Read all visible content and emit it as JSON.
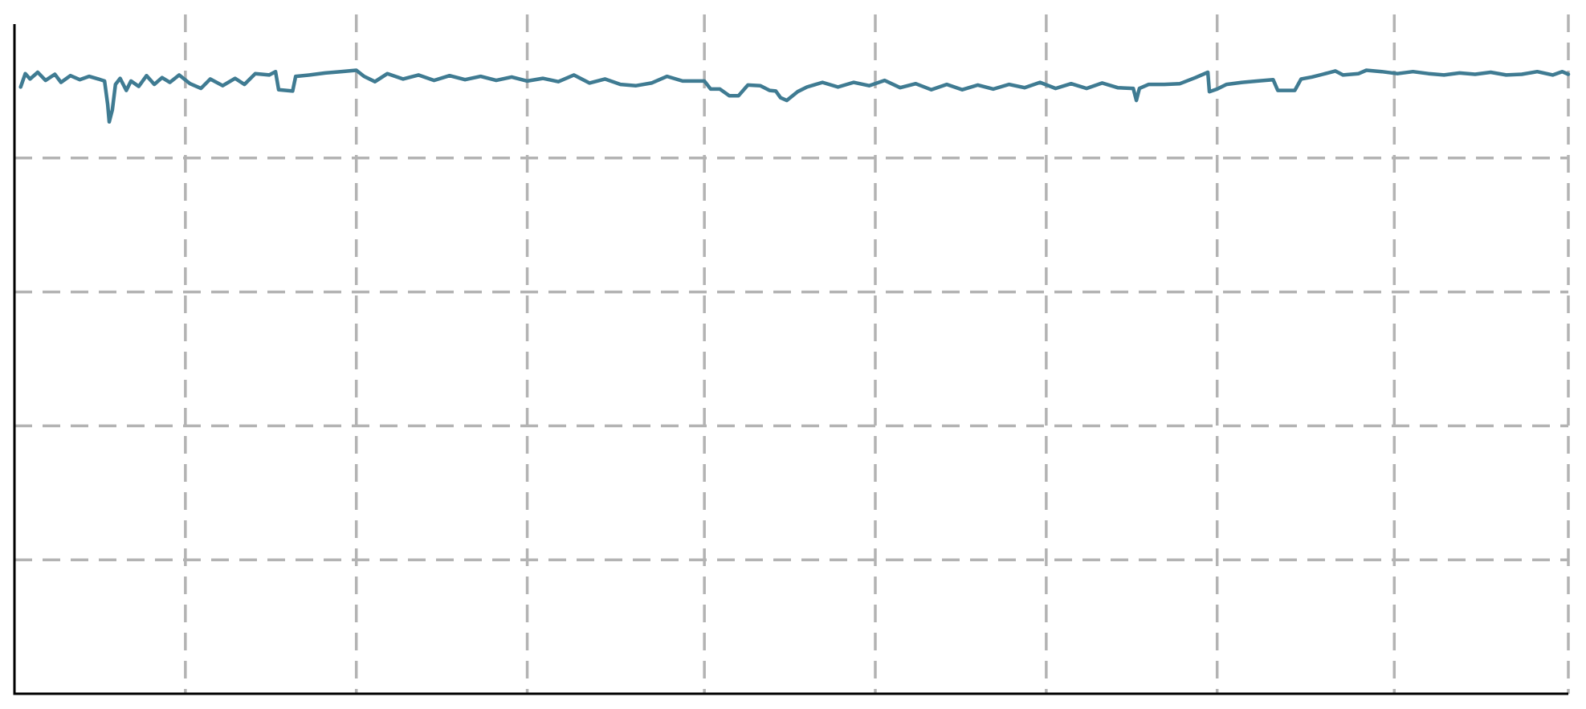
{
  "chart_data": {
    "type": "line",
    "title": "",
    "xlabel": "",
    "ylabel": "",
    "grid": true,
    "legend": "none",
    "x_range": [
      0,
      100
    ],
    "y_range": [
      0,
      100
    ],
    "x_gridlines": [
      11,
      22,
      33,
      44.4,
      55.4,
      66.4,
      77.4,
      88.8,
      100
    ],
    "y_gridlines": [
      20,
      40,
      60,
      80
    ],
    "colors": {
      "series": "#3f7b92",
      "grid": "#b3b3b3",
      "axis": "#000000"
    },
    "series": [
      {
        "values": [
          [
            0.4,
            90.6
          ],
          [
            0.7,
            92.6
          ],
          [
            1.0,
            91.8
          ],
          [
            1.5,
            92.8
          ],
          [
            2.0,
            91.6
          ],
          [
            2.6,
            92.5
          ],
          [
            3.0,
            91.3
          ],
          [
            3.6,
            92.3
          ],
          [
            4.2,
            91.7
          ],
          [
            4.8,
            92.2
          ],
          [
            5.4,
            91.8
          ],
          [
            5.8,
            91.5
          ],
          [
            6.0,
            88.0
          ],
          [
            6.1,
            85.4
          ],
          [
            6.3,
            87.2
          ],
          [
            6.5,
            91.0
          ],
          [
            6.8,
            91.9
          ],
          [
            7.2,
            90.1
          ],
          [
            7.5,
            91.5
          ],
          [
            8.0,
            90.7
          ],
          [
            8.5,
            92.3
          ],
          [
            9.0,
            91.0
          ],
          [
            9.5,
            92.0
          ],
          [
            10.0,
            91.3
          ],
          [
            10.6,
            92.4
          ],
          [
            11.3,
            91.1
          ],
          [
            12.0,
            90.4
          ],
          [
            12.6,
            91.8
          ],
          [
            13.4,
            90.8
          ],
          [
            14.2,
            91.9
          ],
          [
            14.8,
            91.0
          ],
          [
            15.5,
            92.6
          ],
          [
            16.4,
            92.4
          ],
          [
            16.8,
            92.9
          ],
          [
            17.0,
            90.2
          ],
          [
            17.9,
            90.0
          ],
          [
            18.1,
            92.2
          ],
          [
            19.0,
            92.4
          ],
          [
            20.0,
            92.7
          ],
          [
            21.0,
            92.9
          ],
          [
            22.0,
            93.1
          ],
          [
            22.5,
            92.2
          ],
          [
            23.2,
            91.4
          ],
          [
            24.0,
            92.6
          ],
          [
            25.0,
            91.8
          ],
          [
            26.0,
            92.4
          ],
          [
            27.0,
            91.6
          ],
          [
            28.0,
            92.3
          ],
          [
            29.0,
            91.7
          ],
          [
            30.0,
            92.2
          ],
          [
            31.0,
            91.6
          ],
          [
            32.0,
            92.1
          ],
          [
            33.0,
            91.5
          ],
          [
            34.0,
            91.9
          ],
          [
            35.0,
            91.4
          ],
          [
            36.0,
            92.4
          ],
          [
            37.0,
            91.2
          ],
          [
            38.0,
            91.8
          ],
          [
            39.0,
            91.0
          ],
          [
            40.0,
            90.8
          ],
          [
            41.0,
            91.2
          ],
          [
            42.0,
            92.2
          ],
          [
            43.0,
            91.5
          ],
          [
            44.4,
            91.5
          ],
          [
            44.8,
            90.3
          ],
          [
            45.4,
            90.3
          ],
          [
            46.0,
            89.3
          ],
          [
            46.6,
            89.3
          ],
          [
            47.2,
            90.9
          ],
          [
            48.0,
            90.8
          ],
          [
            48.6,
            90.1
          ],
          [
            49.0,
            90.0
          ],
          [
            49.3,
            89.0
          ],
          [
            49.7,
            88.6
          ],
          [
            50.4,
            89.9
          ],
          [
            51.0,
            90.6
          ],
          [
            52.0,
            91.3
          ],
          [
            53.0,
            90.6
          ],
          [
            54.0,
            91.3
          ],
          [
            55.0,
            90.8
          ],
          [
            56.0,
            91.6
          ],
          [
            57.0,
            90.5
          ],
          [
            58.0,
            91.1
          ],
          [
            59.0,
            90.2
          ],
          [
            60.0,
            91.0
          ],
          [
            61.0,
            90.2
          ],
          [
            62.0,
            90.9
          ],
          [
            63.0,
            90.3
          ],
          [
            64.0,
            91.0
          ],
          [
            65.0,
            90.5
          ],
          [
            66.0,
            91.3
          ],
          [
            67.0,
            90.4
          ],
          [
            68.0,
            91.1
          ],
          [
            69.0,
            90.4
          ],
          [
            70.0,
            91.2
          ],
          [
            71.0,
            90.5
          ],
          [
            72.0,
            90.4
          ],
          [
            72.2,
            88.6
          ],
          [
            72.4,
            90.4
          ],
          [
            73.0,
            91.0
          ],
          [
            74.0,
            91.0
          ],
          [
            75.0,
            91.1
          ],
          [
            76.0,
            92.0
          ],
          [
            76.8,
            92.8
          ],
          [
            76.9,
            89.9
          ],
          [
            77.4,
            90.3
          ],
          [
            78.0,
            91.0
          ],
          [
            79.0,
            91.3
          ],
          [
            80.0,
            91.5
          ],
          [
            81.0,
            91.7
          ],
          [
            81.3,
            90.1
          ],
          [
            82.4,
            90.1
          ],
          [
            82.8,
            91.8
          ],
          [
            83.5,
            92.1
          ],
          [
            84.2,
            92.5
          ],
          [
            85.0,
            93.0
          ],
          [
            85.5,
            92.4
          ],
          [
            86.5,
            92.6
          ],
          [
            87.0,
            93.1
          ],
          [
            88.0,
            92.9
          ],
          [
            89.0,
            92.6
          ],
          [
            90.0,
            92.9
          ],
          [
            91.0,
            92.6
          ],
          [
            92.0,
            92.4
          ],
          [
            93.0,
            92.7
          ],
          [
            94.0,
            92.5
          ],
          [
            95.0,
            92.8
          ],
          [
            96.0,
            92.4
          ],
          [
            97.0,
            92.5
          ],
          [
            98.0,
            92.9
          ],
          [
            99.0,
            92.4
          ],
          [
            99.6,
            92.9
          ],
          [
            100.0,
            92.5
          ]
        ]
      }
    ]
  }
}
